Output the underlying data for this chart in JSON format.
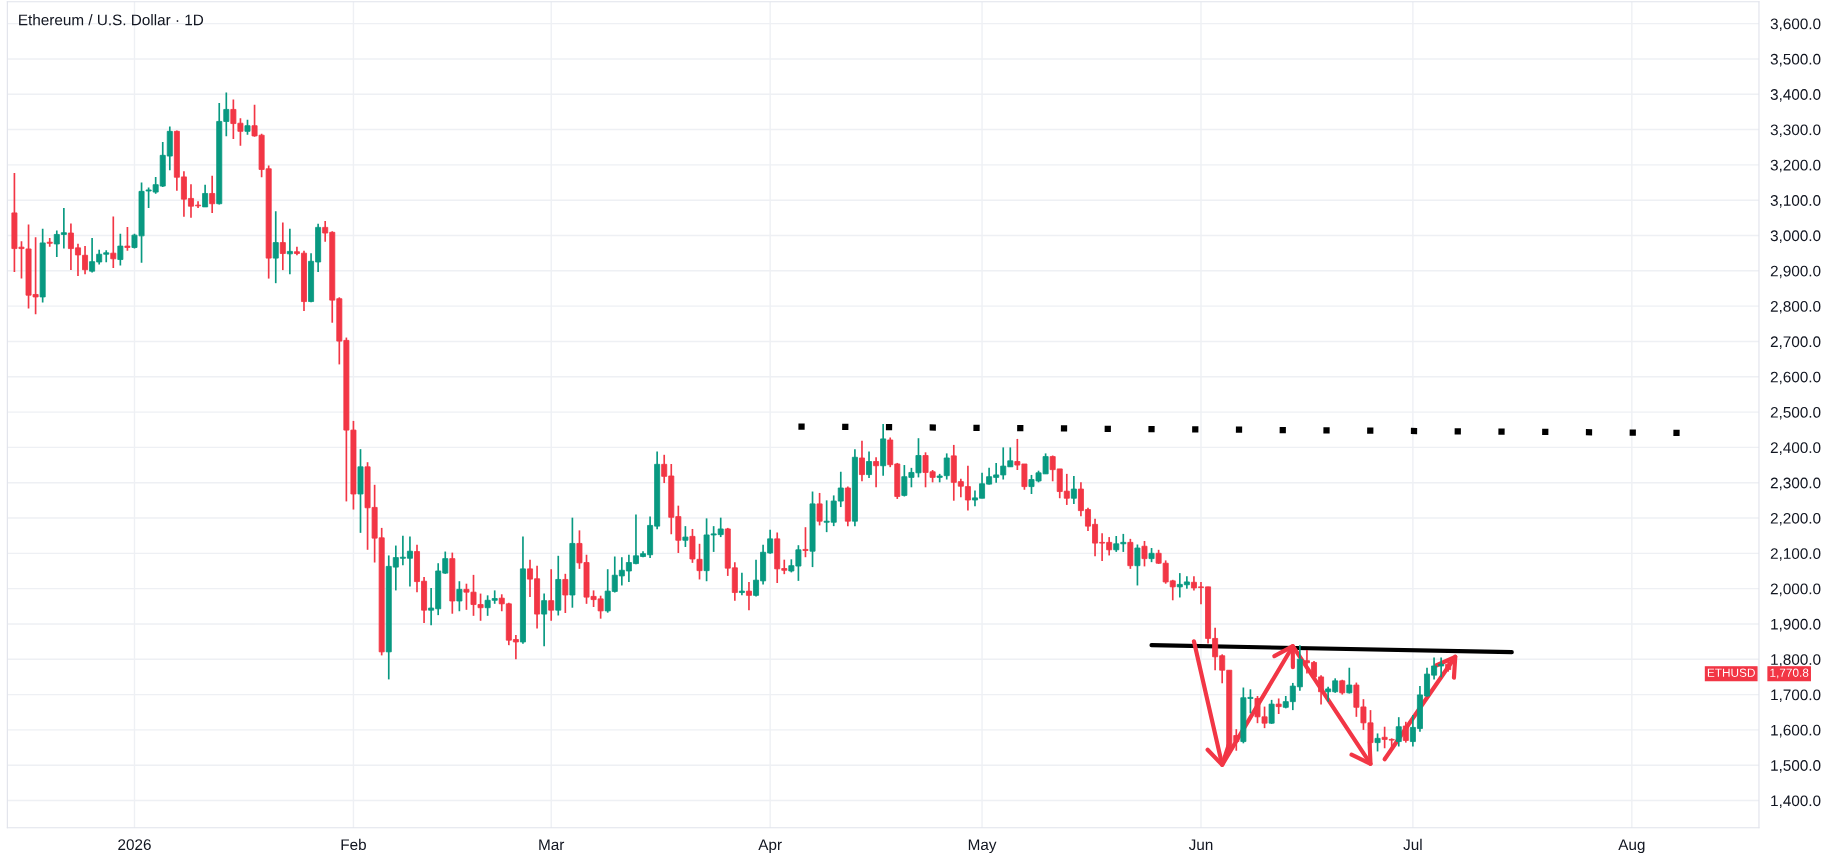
{
  "chart_data": {
    "type": "candlestick",
    "title": "Ethereum / U.S. Dollar · 1D",
    "x": [
      "2025-12-15",
      "2025-12-16",
      "2025-12-17",
      "2025-12-18",
      "2025-12-19",
      "2025-12-20",
      "2025-12-21",
      "2025-12-22",
      "2025-12-23",
      "2025-12-24",
      "2025-12-25",
      "2025-12-26",
      "2025-12-27",
      "2025-12-28",
      "2025-12-29",
      "2025-12-30",
      "2025-12-31",
      "2026-01-01",
      "2026-01-02",
      "2026-01-03",
      "2026-01-04",
      "2026-01-05",
      "2026-01-06",
      "2026-01-07",
      "2026-01-08",
      "2026-01-09",
      "2026-01-10",
      "2026-01-11",
      "2026-01-12",
      "2026-01-13",
      "2026-01-14",
      "2026-01-15",
      "2026-01-16",
      "2026-01-17",
      "2026-01-18",
      "2026-01-19",
      "2026-01-20",
      "2026-01-21",
      "2026-01-22",
      "2026-01-23",
      "2026-01-24",
      "2026-01-25",
      "2026-01-26",
      "2026-01-27",
      "2026-01-28",
      "2026-01-29",
      "2026-01-30",
      "2026-01-31",
      "2026-02-01",
      "2026-02-02",
      "2026-02-03",
      "2026-02-04",
      "2026-02-05",
      "2026-02-06",
      "2026-02-07",
      "2026-02-08",
      "2026-02-09",
      "2026-02-10",
      "2026-02-11",
      "2026-02-12",
      "2026-02-13",
      "2026-02-14",
      "2026-02-15",
      "2026-02-16",
      "2026-02-17",
      "2026-02-18",
      "2026-02-19",
      "2026-02-20",
      "2026-02-21",
      "2026-02-22",
      "2026-02-23",
      "2026-02-24",
      "2026-02-25",
      "2026-02-26",
      "2026-02-27",
      "2026-02-28",
      "2026-03-01",
      "2026-03-02",
      "2026-03-03",
      "2026-03-04",
      "2026-03-05",
      "2026-03-06",
      "2026-03-07",
      "2026-03-08",
      "2026-03-09",
      "2026-03-10",
      "2026-03-11",
      "2026-03-12",
      "2026-03-13",
      "2026-03-14",
      "2026-03-15",
      "2026-03-16",
      "2026-03-17",
      "2026-03-18",
      "2026-03-19",
      "2026-03-20",
      "2026-03-21",
      "2026-03-22",
      "2026-03-23",
      "2026-03-24",
      "2026-03-25",
      "2026-03-26",
      "2026-03-27",
      "2026-03-28",
      "2026-03-29",
      "2026-03-30",
      "2026-03-31",
      "2026-04-01",
      "2026-04-02",
      "2026-04-03",
      "2026-04-04",
      "2026-04-05",
      "2026-04-06",
      "2026-04-07",
      "2026-04-08",
      "2026-04-09",
      "2026-04-10",
      "2026-04-11",
      "2026-04-12",
      "2026-04-13",
      "2026-04-14",
      "2026-04-15",
      "2026-04-16",
      "2026-04-17",
      "2026-04-18",
      "2026-04-19",
      "2026-04-20",
      "2026-04-21",
      "2026-04-22",
      "2026-04-23",
      "2026-04-24",
      "2026-04-25",
      "2026-04-26",
      "2026-04-27",
      "2026-04-28",
      "2026-04-29",
      "2026-04-30",
      "2026-05-01",
      "2026-05-02",
      "2026-05-03",
      "2026-05-04",
      "2026-05-05",
      "2026-05-06",
      "2026-05-07",
      "2026-05-08",
      "2026-05-09",
      "2026-05-10",
      "2026-05-11",
      "2026-05-12",
      "2026-05-13",
      "2026-05-14",
      "2026-05-15",
      "2026-05-16",
      "2026-05-17",
      "2026-05-18",
      "2026-05-19",
      "2026-05-20",
      "2026-05-21",
      "2026-05-22",
      "2026-05-23",
      "2026-05-24",
      "2026-05-25",
      "2026-05-26",
      "2026-05-27",
      "2026-05-28",
      "2026-05-29",
      "2026-05-30",
      "2026-05-31",
      "2026-06-01",
      "2026-06-02",
      "2026-06-03",
      "2026-06-04",
      "2026-06-05",
      "2026-06-06",
      "2026-06-07",
      "2026-06-08",
      "2026-06-09",
      "2026-06-10",
      "2026-06-11",
      "2026-06-12",
      "2026-06-13",
      "2026-06-14",
      "2026-06-15",
      "2026-06-16",
      "2026-06-17",
      "2026-06-18",
      "2026-06-19",
      "2026-06-20",
      "2026-06-21",
      "2026-06-22",
      "2026-06-23",
      "2026-06-24",
      "2026-06-25",
      "2026-06-26",
      "2026-06-27",
      "2026-06-28",
      "2026-06-29",
      "2026-06-30",
      "2026-07-01",
      "2026-07-02",
      "2026-07-03",
      "2026-07-04",
      "2026-07-05",
      "2026-07-06"
    ],
    "ohlc": [
      [
        3064,
        3177,
        2897,
        2963
      ],
      [
        2967,
        2984,
        2878,
        2963
      ],
      [
        2962,
        3031,
        2793,
        2831
      ],
      [
        2833,
        2995,
        2777,
        2826
      ],
      [
        2826,
        3019,
        2810,
        2979
      ],
      [
        2981,
        2993,
        2968,
        2978
      ],
      [
        2976,
        3014,
        2939,
        3003
      ],
      [
        3003,
        3078,
        2963,
        3008
      ],
      [
        3007,
        3034,
        2902,
        2963
      ],
      [
        2965,
        2977,
        2885,
        2945
      ],
      [
        2944,
        2970,
        2890,
        2903
      ],
      [
        2899,
        2993,
        2895,
        2926
      ],
      [
        2925,
        2960,
        2918,
        2947
      ],
      [
        2947,
        2958,
        2924,
        2951
      ],
      [
        2950,
        3054,
        2908,
        2934
      ],
      [
        2932,
        3005,
        2915,
        2970
      ],
      [
        2970,
        3024,
        2957,
        2966
      ],
      [
        2966,
        3005,
        2963,
        3001
      ],
      [
        2999,
        3150,
        2923,
        3125
      ],
      [
        3126,
        3136,
        3078,
        3129
      ],
      [
        3123,
        3166,
        3118,
        3144
      ],
      [
        3140,
        3265,
        3137,
        3227
      ],
      [
        3225,
        3309,
        3185,
        3295
      ],
      [
        3295,
        3297,
        3127,
        3165
      ],
      [
        3166,
        3182,
        3053,
        3103
      ],
      [
        3105,
        3145,
        3050,
        3083
      ],
      [
        3086,
        3097,
        3078,
        3084
      ],
      [
        3081,
        3144,
        3081,
        3119
      ],
      [
        3119,
        3169,
        3064,
        3090
      ],
      [
        3090,
        3375,
        3088,
        3323
      ],
      [
        3323,
        3405,
        3281,
        3357
      ],
      [
        3357,
        3385,
        3273,
        3317
      ],
      [
        3318,
        3332,
        3254,
        3295
      ],
      [
        3295,
        3328,
        3285,
        3311
      ],
      [
        3311,
        3370,
        3280,
        3282
      ],
      [
        3284,
        3288,
        3165,
        3187
      ],
      [
        3189,
        3198,
        2878,
        2936
      ],
      [
        2936,
        3069,
        2865,
        2980
      ],
      [
        2980,
        3037,
        2902,
        2949
      ],
      [
        2948,
        3019,
        2890,
        2955
      ],
      [
        2954,
        2968,
        2944,
        2949
      ],
      [
        2950,
        2957,
        2786,
        2813
      ],
      [
        2813,
        2950,
        2811,
        2927
      ],
      [
        2925,
        3033,
        2897,
        3023
      ],
      [
        3023,
        3041,
        2982,
        3007
      ],
      [
        3009,
        3012,
        2753,
        2817
      ],
      [
        2821,
        2825,
        2635,
        2701
      ],
      [
        2703,
        2711,
        2247,
        2449
      ],
      [
        2449,
        2475,
        2224,
        2268
      ],
      [
        2268,
        2395,
        2158,
        2345
      ],
      [
        2345,
        2358,
        2110,
        2229
      ],
      [
        2230,
        2294,
        2074,
        2143
      ],
      [
        2144,
        2172,
        1811,
        1821
      ],
      [
        1821,
        2094,
        1743,
        2063
      ],
      [
        2061,
        2122,
        1995,
        2088
      ],
      [
        2086,
        2150,
        2066,
        2089
      ],
      [
        2086,
        2148,
        2006,
        2106
      ],
      [
        2105,
        2124,
        1990,
        2020
      ],
      [
        2021,
        2033,
        1903,
        1939
      ],
      [
        1939,
        2002,
        1896,
        1945
      ],
      [
        1943,
        2072,
        1925,
        2050
      ],
      [
        2044,
        2105,
        2042,
        2085
      ],
      [
        2085,
        2102,
        1929,
        1965
      ],
      [
        1965,
        2021,
        1936,
        1998
      ],
      [
        1998,
        2014,
        1940,
        1990
      ],
      [
        1990,
        2039,
        1923,
        1955
      ],
      [
        1955,
        1986,
        1909,
        1946
      ],
      [
        1946,
        1981,
        1923,
        1967
      ],
      [
        1967,
        1995,
        1957,
        1972
      ],
      [
        1973,
        1984,
        1936,
        1957
      ],
      [
        1957,
        1960,
        1840,
        1854
      ],
      [
        1856,
        1869,
        1800,
        1849
      ],
      [
        1849,
        2148,
        1844,
        2056
      ],
      [
        2056,
        2082,
        1976,
        2027
      ],
      [
        2028,
        2065,
        1887,
        1928
      ],
      [
        1928,
        1986,
        1837,
        1966
      ],
      [
        1966,
        2055,
        1909,
        1939
      ],
      [
        1939,
        2093,
        1924,
        2026
      ],
      [
        2026,
        2042,
        1931,
        1982
      ],
      [
        1982,
        2201,
        1946,
        2128
      ],
      [
        2128,
        2165,
        2056,
        2073
      ],
      [
        2074,
        2096,
        1957,
        1976
      ],
      [
        1978,
        1995,
        1948,
        1969
      ],
      [
        1971,
        1980,
        1915,
        1937
      ],
      [
        1937,
        2055,
        1932,
        1993
      ],
      [
        1992,
        2091,
        1989,
        2038
      ],
      [
        2036,
        2089,
        2009,
        2052
      ],
      [
        2050,
        2096,
        2019,
        2074
      ],
      [
        2071,
        2210,
        2069,
        2093
      ],
      [
        2091,
        2106,
        2089,
        2099
      ],
      [
        2096,
        2204,
        2087,
        2179
      ],
      [
        2177,
        2388,
        2168,
        2352
      ],
      [
        2352,
        2379,
        2299,
        2318
      ],
      [
        2319,
        2353,
        2154,
        2202
      ],
      [
        2204,
        2235,
        2101,
        2137
      ],
      [
        2137,
        2177,
        2118,
        2146
      ],
      [
        2148,
        2169,
        2073,
        2084
      ],
      [
        2083,
        2127,
        2026,
        2051
      ],
      [
        2051,
        2199,
        2021,
        2152
      ],
      [
        2152,
        2177,
        2104,
        2155
      ],
      [
        2153,
        2201,
        2146,
        2169
      ],
      [
        2169,
        2172,
        2036,
        2058
      ],
      [
        2059,
        2075,
        1966,
        1989
      ],
      [
        1989,
        2045,
        1981,
        1993
      ],
      [
        1993,
        2019,
        1939,
        1981
      ],
      [
        1981,
        2082,
        1978,
        2024
      ],
      [
        2022,
        2124,
        2012,
        2103
      ],
      [
        2101,
        2167,
        2099,
        2141
      ],
      [
        2141,
        2159,
        2016,
        2056
      ],
      [
        2057,
        2082,
        2041,
        2052
      ],
      [
        2050,
        2083,
        2046,
        2065
      ],
      [
        2064,
        2123,
        2022,
        2110
      ],
      [
        2111,
        2174,
        2089,
        2108
      ],
      [
        2106,
        2275,
        2061,
        2240
      ],
      [
        2240,
        2271,
        2179,
        2191
      ],
      [
        2188,
        2250,
        2160,
        2191
      ],
      [
        2188,
        2264,
        2177,
        2248
      ],
      [
        2248,
        2331,
        2231,
        2285
      ],
      [
        2285,
        2289,
        2177,
        2191
      ],
      [
        2191,
        2395,
        2177,
        2372
      ],
      [
        2370,
        2419,
        2304,
        2323
      ],
      [
        2323,
        2388,
        2313,
        2360
      ],
      [
        2360,
        2372,
        2287,
        2348
      ],
      [
        2348,
        2466,
        2320,
        2424
      ],
      [
        2421,
        2428,
        2344,
        2351
      ],
      [
        2353,
        2356,
        2254,
        2261
      ],
      [
        2264,
        2350,
        2261,
        2317
      ],
      [
        2315,
        2342,
        2287,
        2329
      ],
      [
        2328,
        2426,
        2315,
        2377
      ],
      [
        2377,
        2386,
        2287,
        2329
      ],
      [
        2331,
        2336,
        2301,
        2315
      ],
      [
        2315,
        2325,
        2301,
        2319
      ],
      [
        2320,
        2383,
        2309,
        2370
      ],
      [
        2376,
        2407,
        2249,
        2301
      ],
      [
        2303,
        2311,
        2259,
        2290
      ],
      [
        2289,
        2348,
        2221,
        2251
      ],
      [
        2251,
        2278,
        2233,
        2257
      ],
      [
        2256,
        2328,
        2256,
        2297
      ],
      [
        2296,
        2342,
        2295,
        2317
      ],
      [
        2315,
        2356,
        2300,
        2322
      ],
      [
        2322,
        2400,
        2309,
        2347
      ],
      [
        2345,
        2400,
        2345,
        2362
      ],
      [
        2360,
        2424,
        2336,
        2350
      ],
      [
        2353,
        2353,
        2280,
        2289
      ],
      [
        2289,
        2322,
        2268,
        2309
      ],
      [
        2305,
        2334,
        2301,
        2328
      ],
      [
        2325,
        2383,
        2325,
        2374
      ],
      [
        2374,
        2377,
        2304,
        2337
      ],
      [
        2339,
        2339,
        2256,
        2275
      ],
      [
        2276,
        2325,
        2237,
        2256
      ],
      [
        2256,
        2319,
        2240,
        2282
      ],
      [
        2282,
        2301,
        2205,
        2221
      ],
      [
        2224,
        2229,
        2163,
        2177
      ],
      [
        2182,
        2198,
        2092,
        2129
      ],
      [
        2131,
        2157,
        2078,
        2129
      ],
      [
        2131,
        2146,
        2094,
        2110
      ],
      [
        2110,
        2149,
        2104,
        2127
      ],
      [
        2127,
        2155,
        2104,
        2131
      ],
      [
        2131,
        2141,
        2056,
        2065
      ],
      [
        2065,
        2125,
        2009,
        2115
      ],
      [
        2120,
        2135,
        2063,
        2085
      ],
      [
        2085,
        2115,
        2075,
        2100
      ],
      [
        2100,
        2110,
        2070,
        2072
      ],
      [
        2072,
        2080,
        2014,
        2019
      ],
      [
        2022,
        2025,
        1967,
        2005
      ],
      [
        2005,
        2044,
        1975,
        2012
      ],
      [
        2011,
        2035,
        2000,
        2019
      ],
      [
        2018,
        2035,
        1995,
        2002
      ],
      [
        2005,
        2019,
        1956,
        2003
      ],
      [
        2005,
        2005,
        1845,
        1859
      ],
      [
        1859,
        1889,
        1769,
        1807
      ],
      [
        1810,
        1814,
        1732,
        1769
      ],
      [
        1769,
        1769,
        1543,
        1548
      ],
      [
        1584,
        1602,
        1541,
        1567
      ],
      [
        1567,
        1720,
        1562,
        1691
      ],
      [
        1689,
        1715,
        1647,
        1692
      ],
      [
        1689,
        1696,
        1619,
        1637
      ],
      [
        1637,
        1666,
        1605,
        1619
      ],
      [
        1619,
        1685,
        1617,
        1673
      ],
      [
        1673,
        1689,
        1645,
        1666
      ],
      [
        1664,
        1696,
        1661,
        1680
      ],
      [
        1680,
        1733,
        1656,
        1724
      ],
      [
        1722,
        1840,
        1711,
        1800
      ],
      [
        1796,
        1826,
        1760,
        1790
      ],
      [
        1791,
        1795,
        1745,
        1750
      ],
      [
        1750,
        1755,
        1672,
        1708
      ],
      [
        1708,
        1722,
        1680,
        1716
      ],
      [
        1708,
        1746,
        1705,
        1739
      ],
      [
        1739,
        1742,
        1700,
        1705
      ],
      [
        1705,
        1776,
        1703,
        1727
      ],
      [
        1727,
        1734,
        1637,
        1664
      ],
      [
        1665,
        1687,
        1600,
        1620
      ],
      [
        1620,
        1656,
        1539,
        1564
      ],
      [
        1564,
        1590,
        1539,
        1576
      ],
      [
        1579,
        1609,
        1548,
        1573
      ],
      [
        1573,
        1576,
        1548,
        1571
      ],
      [
        1567,
        1636,
        1553,
        1609
      ],
      [
        1611,
        1623,
        1564,
        1570
      ],
      [
        1567,
        1642,
        1553,
        1607
      ],
      [
        1604,
        1724,
        1595,
        1699
      ],
      [
        1696,
        1776,
        1694,
        1758
      ],
      [
        1755,
        1805,
        1743,
        1781
      ],
      [
        1781,
        1805,
        1749,
        1786
      ],
      [
        1786,
        1793,
        1765,
        1770.8
      ]
    ],
    "series": [
      {
        "type": "line",
        "x": [
          "2026-04-05",
          "2026-08-08"
        ],
        "values": [
          2459,
          2441
        ],
        "color": "#000000",
        "line_style": "dotted"
      },
      {
        "type": "line",
        "x": [
          "2026-05-25",
          "2026-07-15"
        ],
        "values": [
          1840,
          1820
        ],
        "color": "#000000",
        "line_style": "solid"
      },
      {
        "type": "line",
        "x": [
          "2026-05-31",
          "2026-06-04",
          "2026-06-14",
          "2026-06-25"
        ],
        "values": [
          1851,
          1501,
          1837,
          1504
        ],
        "color": "#f23645",
        "line_style": "solid"
      },
      {
        "type": "line",
        "x": [
          "2026-06-27",
          "2026-07-07"
        ],
        "values": [
          1517,
          1807
        ],
        "color": "#f23645",
        "line_style": "solid"
      }
    ],
    "annotations": [
      "ETHUSD",
      "1,770.8"
    ],
    "xlim": [
      "2025-12-14",
      "2026-08-19"
    ],
    "xticks": [
      {
        "value": "2026-01-01",
        "label": "2026"
      },
      {
        "value": "2026-02-01",
        "label": "Feb"
      },
      {
        "value": "2026-03-01",
        "label": "Mar"
      },
      {
        "value": "2026-04-01",
        "label": "Apr"
      },
      {
        "value": "2026-05-01",
        "label": "May"
      },
      {
        "value": "2026-06-01",
        "label": "Jun"
      },
      {
        "value": "2026-07-01",
        "label": "Jul"
      },
      {
        "value": "2026-08-01",
        "label": "Aug"
      }
    ],
    "ylim": [
      1323,
      3662
    ],
    "yticks": [
      {
        "value": 1400,
        "label": "1,400.0"
      },
      {
        "value": 1500,
        "label": "1,500.0"
      },
      {
        "value": 1600,
        "label": "1,600.0"
      },
      {
        "value": 1700,
        "label": "1,700.0"
      },
      {
        "value": 1800,
        "label": "1,800.0"
      },
      {
        "value": 1900,
        "label": "1,900.0"
      },
      {
        "value": 2000,
        "label": "2,000.0"
      },
      {
        "value": 2100,
        "label": "2,100.0"
      },
      {
        "value": 2200,
        "label": "2,200.0"
      },
      {
        "value": 2300,
        "label": "2,300.0"
      },
      {
        "value": 2400,
        "label": "2,400.0"
      },
      {
        "value": 2500,
        "label": "2,500.0"
      },
      {
        "value": 2600,
        "label": "2,600.0"
      },
      {
        "value": 2700,
        "label": "2,700.0"
      },
      {
        "value": 2800,
        "label": "2,800.0"
      },
      {
        "value": 2900,
        "label": "2,900.0"
      },
      {
        "value": 3000,
        "label": "3,000.0"
      },
      {
        "value": 3100,
        "label": "3,100.0"
      },
      {
        "value": 3200,
        "label": "3,200.0"
      },
      {
        "value": 3300,
        "label": "3,300.0"
      },
      {
        "value": 3400,
        "label": "3,400.0"
      },
      {
        "value": 3500,
        "label": "3,500.0"
      },
      {
        "value": 3600,
        "label": "3,600.0"
      }
    ],
    "grid": true
  }
}
